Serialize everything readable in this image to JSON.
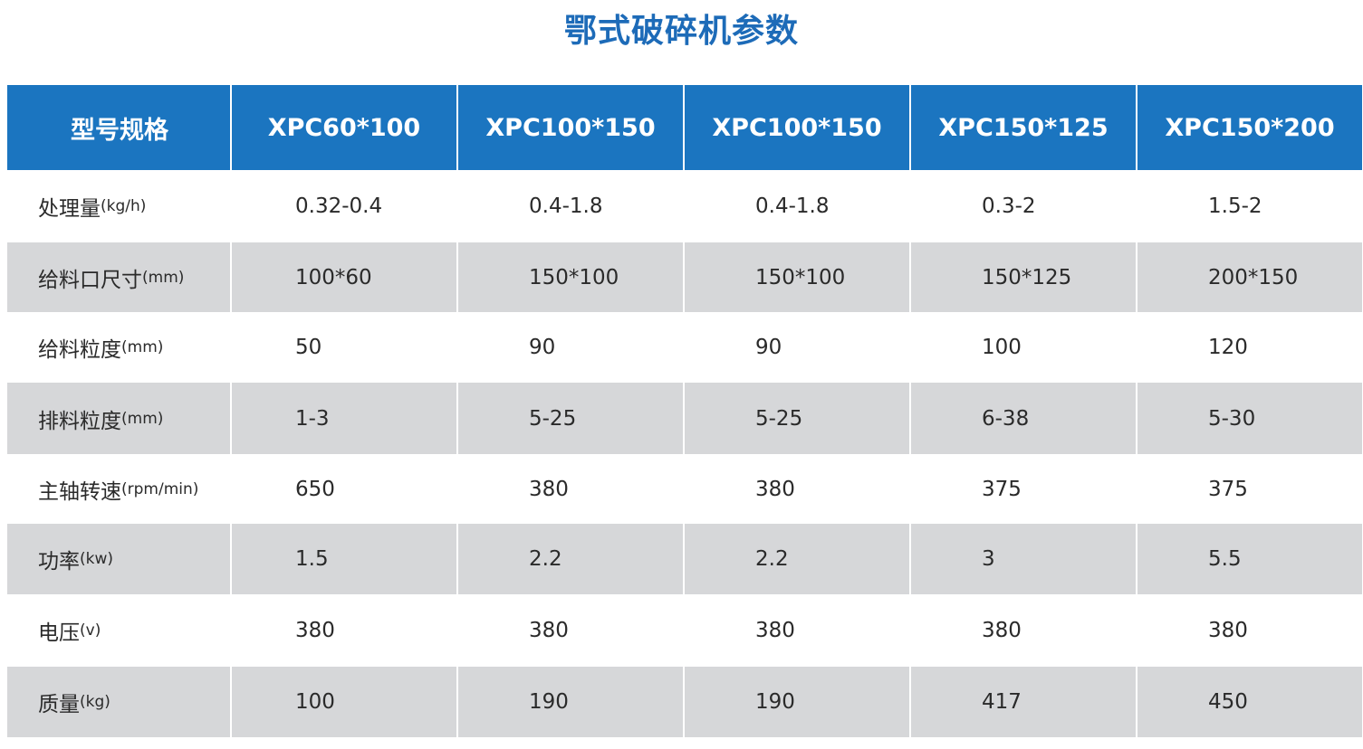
{
  "title": "鄂式破碎机参数",
  "header": {
    "spec_label": "型号规格",
    "models": [
      "XPC60*100",
      "XPC100*150",
      "XPC100*150",
      "XPC150*125",
      "XPC150*200"
    ]
  },
  "rows": [
    {
      "name": "处理量",
      "unit": "(kg/h)",
      "values": [
        "0.32-0.4",
        "0.4-1.8",
        "0.4-1.8",
        "0.3-2",
        "1.5-2"
      ]
    },
    {
      "name": "给料口尺寸",
      "unit": "(mm)",
      "values": [
        "100*60",
        "150*100",
        "150*100",
        "150*125",
        "200*150"
      ]
    },
    {
      "name": "给料粒度",
      "unit": "(mm)",
      "values": [
        "50",
        "90",
        "90",
        "100",
        "120"
      ]
    },
    {
      "name": "排料粒度",
      "unit": "(mm)",
      "values": [
        "1-3",
        "5-25",
        "5-25",
        "6-38",
        "5-30"
      ]
    },
    {
      "name": "主轴转速",
      "unit": "(rpm/min)",
      "values": [
        "650",
        "380",
        "380",
        "375",
        "375"
      ]
    },
    {
      "name": "功率",
      "unit": "(kw)",
      "values": [
        "1.5",
        "2.2",
        "2.2",
        "3",
        "5.5"
      ]
    },
    {
      "name": "电压",
      "unit": "(v)",
      "values": [
        "380",
        "380",
        "380",
        "380",
        "380"
      ]
    },
    {
      "name": "质量",
      "unit": "(kg)",
      "values": [
        "100",
        "190",
        "190",
        "417",
        "450"
      ]
    }
  ]
}
